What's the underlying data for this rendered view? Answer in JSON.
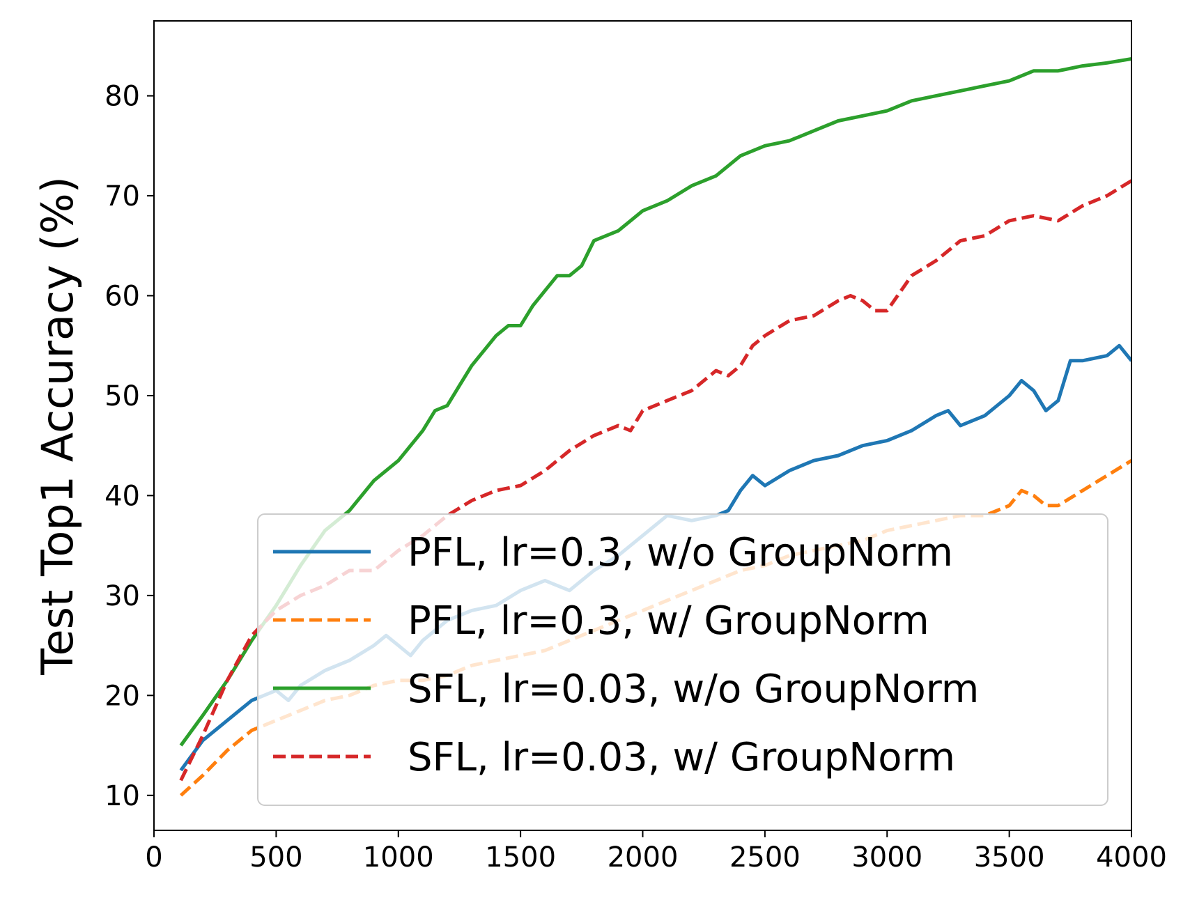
{
  "chart_data": {
    "type": "line",
    "title": "",
    "xlabel": "",
    "ylabel": "Test Top1 Accuracy (%)",
    "xlim": [
      0,
      4000
    ],
    "ylim": [
      6.5,
      87.5
    ],
    "xticks": [
      0,
      500,
      1000,
      1500,
      2000,
      2500,
      3000,
      3500,
      4000
    ],
    "yticks": [
      10,
      20,
      30,
      40,
      50,
      60,
      70,
      80
    ],
    "grid": false,
    "legend_position": "lower-right",
    "series": [
      {
        "name": "PFL, lr=0.3, w/o GroupNorm",
        "color": "#1f77b4",
        "dash": "solid",
        "x": [
          110,
          200,
          300,
          400,
          500,
          550,
          600,
          700,
          800,
          900,
          950,
          1000,
          1050,
          1100,
          1200,
          1300,
          1400,
          1500,
          1600,
          1700,
          1800,
          1900,
          2000,
          2100,
          2200,
          2300,
          2350,
          2400,
          2450,
          2500,
          2600,
          2700,
          2800,
          2900,
          3000,
          3100,
          3200,
          3250,
          3300,
          3350,
          3400,
          3500,
          3550,
          3600,
          3650,
          3700,
          3750,
          3800,
          3900,
          3950,
          4000
        ],
        "y": [
          12.5,
          15.5,
          17.5,
          19.5,
          20.5,
          19.5,
          21,
          22.5,
          23.5,
          25,
          26,
          25,
          24,
          25.5,
          27.5,
          28.5,
          29,
          30.5,
          31.5,
          30.5,
          32.5,
          34,
          36,
          38,
          37.5,
          38,
          38.5,
          40.5,
          42,
          41,
          42.5,
          43.5,
          44,
          45,
          45.5,
          46.5,
          48,
          48.5,
          47,
          47.5,
          48,
          50,
          51.5,
          50.5,
          48.5,
          49.5,
          53.5,
          53.5,
          54,
          55,
          53.5
        ]
      },
      {
        "name": "PFL, lr=0.3, w/ GroupNorm",
        "color": "#ff7f0e",
        "dash": "dashed",
        "x": [
          110,
          200,
          300,
          400,
          500,
          600,
          700,
          800,
          900,
          1000,
          1100,
          1200,
          1300,
          1400,
          1500,
          1600,
          1700,
          1800,
          1900,
          2000,
          2100,
          2200,
          2300,
          2400,
          2500,
          2600,
          2700,
          2800,
          2900,
          3000,
          3100,
          3200,
          3300,
          3400,
          3500,
          3550,
          3600,
          3650,
          3700,
          3800,
          3900,
          4000
        ],
        "y": [
          10,
          12,
          14.5,
          16.5,
          17.5,
          18.5,
          19.5,
          20,
          21,
          21.5,
          21.5,
          22,
          23,
          23.5,
          24,
          24.5,
          25.5,
          26.5,
          27.5,
          28.5,
          29.5,
          30.5,
          31.5,
          32.5,
          33,
          34,
          34.5,
          35,
          35.5,
          36.5,
          37,
          37.5,
          38,
          38,
          39,
          40.5,
          40,
          39,
          39,
          40.5,
          42,
          43.5
        ]
      },
      {
        "name": "SFL, lr=0.03, w/o GroupNorm",
        "color": "#2ca02c",
        "dash": "solid",
        "x": [
          110,
          200,
          300,
          400,
          500,
          600,
          700,
          800,
          900,
          1000,
          1100,
          1150,
          1200,
          1250,
          1300,
          1350,
          1400,
          1450,
          1500,
          1550,
          1600,
          1650,
          1700,
          1750,
          1800,
          1850,
          1900,
          1950,
          2000,
          2100,
          2200,
          2300,
          2400,
          2500,
          2600,
          2700,
          2800,
          2900,
          3000,
          3100,
          3200,
          3300,
          3400,
          3500,
          3600,
          3700,
          3800,
          3900,
          4000
        ],
        "y": [
          15,
          18,
          21.5,
          25.5,
          29,
          33,
          36.5,
          38.5,
          41.5,
          43.5,
          46.5,
          48.5,
          49,
          51,
          53,
          54.5,
          56,
          57,
          57,
          59,
          60.5,
          62,
          62,
          63,
          65.5,
          66,
          66.5,
          67.5,
          68.5,
          69.5,
          71,
          72,
          74,
          75,
          75.5,
          76.5,
          77.5,
          78,
          78.5,
          79.5,
          80,
          80.5,
          81,
          81.5,
          82.5,
          82.5,
          83,
          83.3,
          83.7
        ]
      },
      {
        "name": "SFL, lr=0.03, w/ GroupNorm",
        "color": "#d62728",
        "dash": "dashed",
        "x": [
          110,
          200,
          300,
          400,
          500,
          600,
          700,
          800,
          900,
          1000,
          1100,
          1200,
          1300,
          1400,
          1500,
          1600,
          1700,
          1800,
          1900,
          1950,
          2000,
          2100,
          2200,
          2300,
          2350,
          2400,
          2450,
          2500,
          2600,
          2700,
          2800,
          2850,
          2900,
          2950,
          3000,
          3100,
          3200,
          3300,
          3400,
          3500,
          3600,
          3700,
          3800,
          3900,
          4000
        ],
        "y": [
          11.5,
          16,
          21.5,
          26,
          28.5,
          30,
          31,
          32.5,
          32.5,
          34.5,
          36,
          38,
          39.5,
          40.5,
          41,
          42.5,
          44.5,
          46,
          47,
          46.5,
          48.5,
          49.5,
          50.5,
          52.5,
          52,
          53,
          55,
          56,
          57.5,
          58,
          59.5,
          60,
          59.5,
          58.5,
          58.5,
          62,
          63.5,
          65.5,
          66,
          67.5,
          68,
          67.5,
          69,
          70,
          71.5
        ]
      }
    ]
  }
}
